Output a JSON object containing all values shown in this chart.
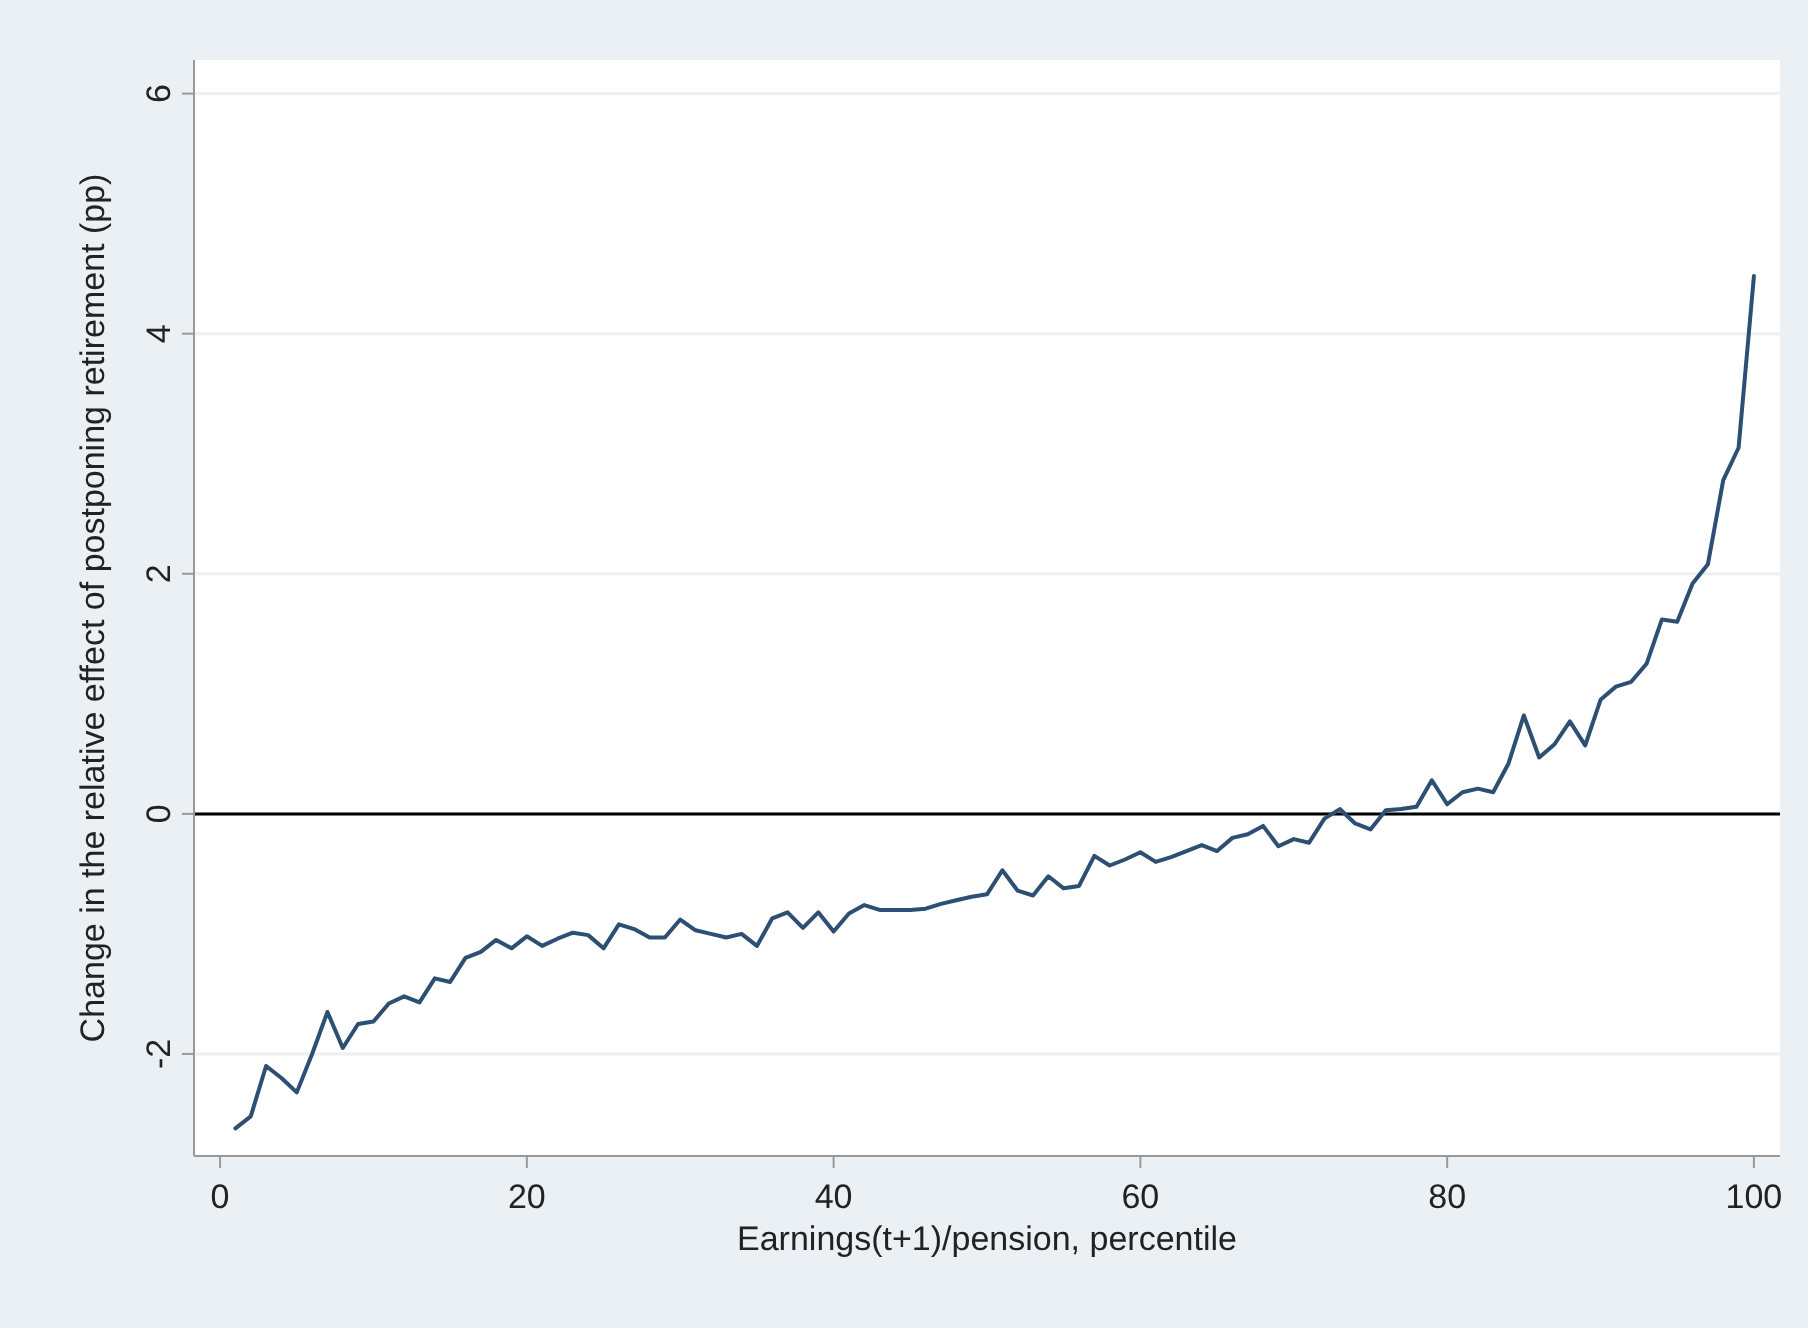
{
  "chart_data": {
    "type": "line",
    "xlabel": "Earnings(t+1)/pension, percentile",
    "ylabel": "Change in the relative effect of postponing retirement (pp)",
    "x": [
      1,
      2,
      3,
      4,
      5,
      6,
      7,
      8,
      9,
      10,
      11,
      12,
      13,
      14,
      15,
      16,
      17,
      18,
      19,
      20,
      21,
      22,
      23,
      24,
      25,
      26,
      27,
      28,
      29,
      30,
      31,
      32,
      33,
      34,
      35,
      36,
      37,
      38,
      39,
      40,
      41,
      42,
      43,
      44,
      45,
      46,
      47,
      48,
      49,
      50,
      51,
      52,
      53,
      54,
      55,
      56,
      57,
      58,
      59,
      60,
      61,
      62,
      63,
      64,
      65,
      66,
      67,
      68,
      69,
      70,
      71,
      72,
      73,
      74,
      75,
      76,
      77,
      78,
      79,
      80,
      81,
      82,
      83,
      84,
      85,
      86,
      87,
      88,
      89,
      90,
      91,
      92,
      93,
      94,
      95,
      96,
      97,
      98,
      99,
      100
    ],
    "series": [
      {
        "color": "#2c4f73",
        "values": [
          -2.62,
          -2.52,
          -2.1,
          -2.2,
          -2.32,
          -2.0,
          -1.65,
          -1.95,
          -1.75,
          -1.73,
          -1.58,
          -1.52,
          -1.57,
          -1.37,
          -1.4,
          -1.2,
          -1.15,
          -1.05,
          -1.12,
          -1.02,
          -1.1,
          -1.04,
          -0.99,
          -1.01,
          -1.12,
          -0.92,
          -0.96,
          -1.03,
          -1.03,
          -0.88,
          -0.97,
          -1.0,
          -1.03,
          -1.0,
          -1.1,
          -0.87,
          -0.82,
          -0.95,
          -0.82,
          -0.98,
          -0.83,
          -0.76,
          -0.8,
          -0.8,
          -0.8,
          -0.79,
          -0.75,
          -0.72,
          -0.69,
          -0.67,
          -0.47,
          -0.64,
          -0.68,
          -0.52,
          -0.62,
          -0.6,
          -0.35,
          -0.43,
          -0.38,
          -0.32,
          -0.4,
          -0.36,
          -0.31,
          -0.26,
          -0.31,
          -0.2,
          -0.17,
          -0.1,
          -0.27,
          -0.21,
          -0.24,
          -0.04,
          0.04,
          -0.08,
          -0.13,
          0.03,
          0.04,
          0.06,
          0.28,
          0.08,
          0.18,
          0.21,
          0.18,
          0.42,
          0.82,
          0.47,
          0.58,
          0.77,
          0.57,
          0.95,
          1.06,
          1.1,
          1.25,
          1.62,
          1.6,
          1.92,
          2.08,
          2.78,
          3.05,
          4.48
        ]
      }
    ],
    "xlim": [
      -1.7,
      101.7
    ],
    "ylim": [
      -2.85,
      6.28
    ],
    "xticks": [
      0,
      20,
      40,
      60,
      80,
      100
    ],
    "yticks": [
      -2,
      0,
      2,
      4,
      6
    ],
    "grid": "y",
    "marker": "none",
    "line_style": "solid",
    "ref_lines": [
      {
        "axis": "y",
        "value": 0,
        "color": "#000000"
      }
    ]
  }
}
